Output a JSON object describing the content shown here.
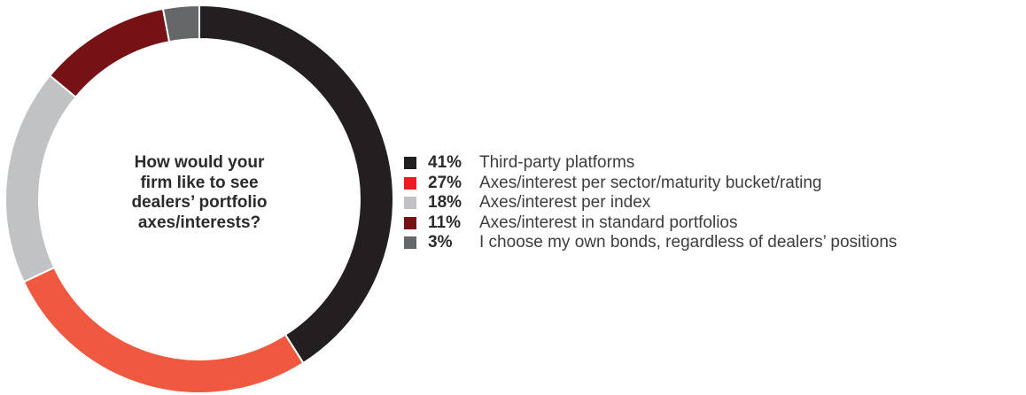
{
  "chart_data": {
    "type": "pie",
    "title_lines": [
      "How would your",
      "firm like to see",
      "dealers’ portfolio",
      "axes/interests?"
    ],
    "slices": [
      {
        "pct_label": "41%",
        "value": 41,
        "label": "Third-party platforms",
        "color": "#231f20",
        "legend_color": "#231f20"
      },
      {
        "pct_label": "27%",
        "value": 27,
        "label": "Axes/interest per sector/maturity bucket/rating",
        "color": "#ef5940",
        "legend_color": "#ed1c24"
      },
      {
        "pct_label": "18%",
        "value": 18,
        "label": "Axes/interest per index",
        "color": "#c1c2c4",
        "legend_color": "#c1c2c4"
      },
      {
        "pct_label": "11%",
        "value": 11,
        "label": "Axes/interest in standard portfolios",
        "color": "#761116",
        "legend_color": "#761116"
      },
      {
        "pct_label": "3%",
        "value": 3,
        "label": "I choose my own bonds, regardless of dealers’ positions",
        "color": "#666768",
        "legend_color": "#666768"
      }
    ],
    "legend_position": "right",
    "donut": true
  }
}
